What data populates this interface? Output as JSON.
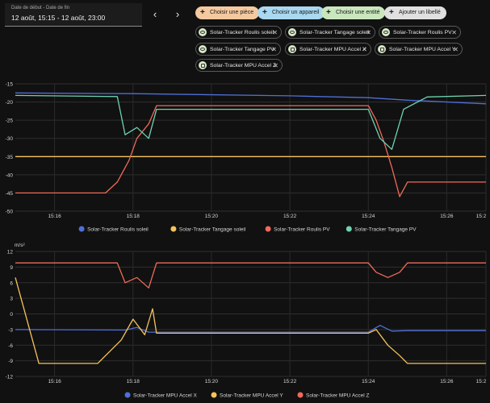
{
  "date_picker": {
    "label": "Date de début - Date de fin",
    "value": "12 août, 15:15 - 12 août, 23:00"
  },
  "nav": {
    "prev": "‹",
    "next": "›"
  },
  "add_buttons": [
    {
      "label": "Choisir une pièce",
      "color": "#f5c9a0"
    },
    {
      "label": "Choisir un appareil",
      "color": "#a9d8f0"
    },
    {
      "label": "Choisir une entité",
      "color": "#c9e6bd"
    },
    {
      "label": "Ajouter un libellé",
      "color": "#e0e0e0"
    }
  ],
  "selected_entities": [
    {
      "label": "Solar-Tracker Roulis soleil",
      "icon": "eye-icon"
    },
    {
      "label": "Solar-Tracker Tangage soleil",
      "icon": "eye-icon"
    },
    {
      "label": "Solar-Tracker Roulis PV",
      "icon": "eye-icon"
    },
    {
      "label": "Solar-Tracker Tangage PV",
      "icon": "eye-icon"
    },
    {
      "label": "Solar-Tracker MPU Accel X",
      "icon": "cube-icon"
    },
    {
      "label": "Solar-Tracker MPU Accel Y",
      "icon": "cube-icon"
    },
    {
      "label": "Solar-Tracker MPU Accel Z",
      "icon": "cube-icon"
    }
  ],
  "chart_data": [
    {
      "type": "line",
      "ylabel": "°",
      "ylim": [
        -50,
        -15
      ],
      "yticks": [
        -15,
        -20,
        -25,
        -30,
        -35,
        -40,
        -45,
        -50
      ],
      "xlim": [
        "15:15",
        "15:27"
      ],
      "xticks": [
        "15:16",
        "15:18",
        "15:20",
        "15:22",
        "15:24",
        "15:26",
        "15:2"
      ],
      "grid": true,
      "legend_position": "bottom",
      "series": [
        {
          "name": "Solar-Tracker Roulis soleil",
          "color": "#4f6fd6",
          "x": [
            "15:15",
            "15:18",
            "15:22",
            "15:24",
            "15:25",
            "15:27"
          ],
          "values": [
            -17.5,
            -17.7,
            -18.3,
            -18.8,
            -19.5,
            -20.5
          ]
        },
        {
          "name": "Solar-Tracker Tangage soleil",
          "color": "#f6c35b",
          "x": [
            "15:15",
            "15:16.8",
            "15:17",
            "15:27"
          ],
          "values": [
            -35,
            -35,
            -35,
            -35
          ]
        },
        {
          "name": "Solar-Tracker Roulis PV",
          "color": "#ef6a5a",
          "x": [
            "15:15",
            "15:16.6",
            "15:17.3",
            "15:17.6",
            "15:17.9",
            "15:18.1",
            "15:18.4",
            "15:18.6",
            "15:24",
            "15:24.2",
            "15:24.4",
            "15:24.6",
            "15:24.8",
            "15:25",
            "15:27"
          ],
          "values": [
            -45,
            -45,
            -45,
            -42,
            -36,
            -30,
            -26,
            -21,
            -21,
            -25,
            -31,
            -38,
            -46,
            -42,
            -42
          ]
        },
        {
          "name": "Solar-Tracker Tangage PV",
          "color": "#6ed3b0",
          "x": [
            "15:15",
            "15:17.6",
            "15:17.8",
            "15:18.1",
            "15:18.4",
            "15:18.6",
            "15:24",
            "15:24.3",
            "15:24.6",
            "15:24.9",
            "15:25.5",
            "15:27"
          ],
          "values": [
            -18.2,
            -18.5,
            -29,
            -27,
            -30,
            -22,
            -22,
            -30,
            -33,
            -22,
            -18.6,
            -18.2
          ]
        }
      ]
    },
    {
      "type": "line",
      "ylabel": "m/s²",
      "ylim": [
        -12,
        12
      ],
      "yticks": [
        12,
        9,
        6,
        3,
        0,
        -3,
        -6,
        -9,
        -12
      ],
      "xlim": [
        "15:15",
        "15:27"
      ],
      "xticks": [
        "15:16",
        "15:18",
        "15:20",
        "15:22",
        "15:24",
        "15:26",
        "15:2"
      ],
      "grid": true,
      "legend_position": "bottom",
      "series": [
        {
          "name": "Solar-Tracker MPU Accel X",
          "color": "#4f6fd6",
          "x": [
            "15:15",
            "15:17.8",
            "15:18.1",
            "15:18.4",
            "15:18.6",
            "15:24",
            "15:24.3",
            "15:24.6",
            "15:25",
            "15:27"
          ],
          "values": [
            -3,
            -3.1,
            -2.6,
            -3.5,
            -3.5,
            -3.5,
            -2.2,
            -3.3,
            -3.2,
            -3.2
          ]
        },
        {
          "name": "Solar-Tracker MPU Accel Y",
          "color": "#f6c35b",
          "x": [
            "15:15",
            "15:15.6",
            "15:17.1",
            "15:17.7",
            "15:18.0",
            "15:18.3",
            "15:18.5",
            "15:18.6",
            "15:24",
            "15:24.2",
            "15:24.5",
            "15:24.8",
            "15:25",
            "15:27"
          ],
          "values": [
            7,
            -9.5,
            -9.5,
            -5,
            -1,
            -4,
            1,
            -3.7,
            -3.7,
            -3,
            -6,
            -8,
            -9.5,
            -9.5
          ]
        },
        {
          "name": "Solar-Tracker MPU Accel Z",
          "color": "#ef6a5a",
          "x": [
            "15:15",
            "15:15.6",
            "15:17.6",
            "15:17.8",
            "15:18.1",
            "15:18.4",
            "15:18.6",
            "15:24",
            "15:24.2",
            "15:24.5",
            "15:24.8",
            "15:25",
            "15:27"
          ],
          "values": [
            9.8,
            9.8,
            9.8,
            6,
            7,
            5,
            9.8,
            9.8,
            8,
            7,
            8,
            9.8,
            9.8
          ]
        }
      ]
    }
  ]
}
